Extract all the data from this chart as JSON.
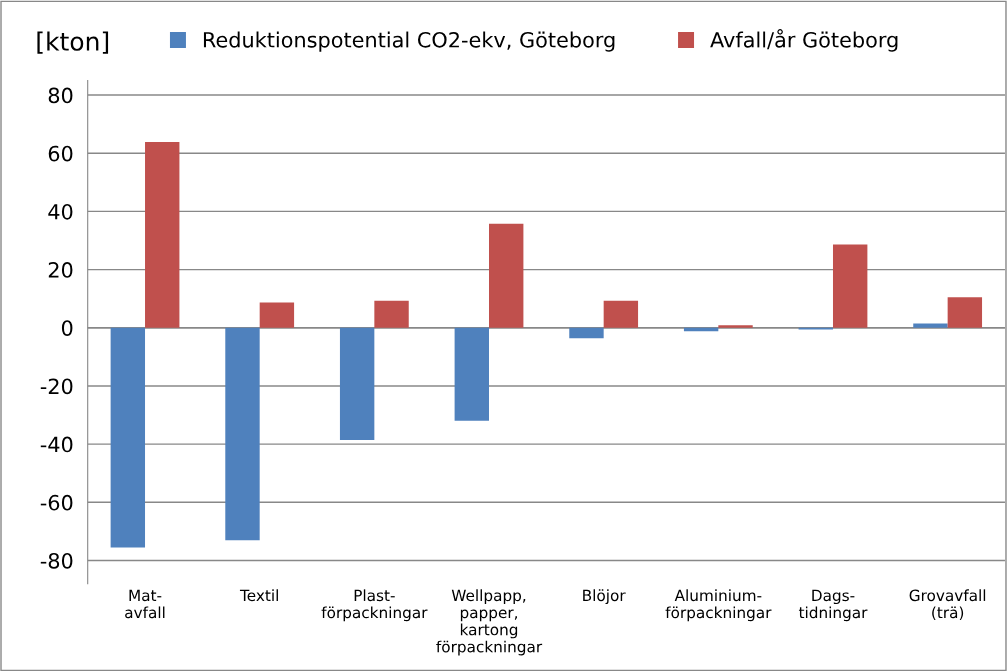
{
  "chart_data": {
    "type": "bar",
    "ylabel": "[kton]",
    "categories": [
      "Mat-\navfall",
      "Textil",
      "Plast-\nförpackningar",
      "Wellpapp,\npapper,\nkartong\nförpackningar",
      "Blöjor",
      "Aluminium-\nförpackningar",
      "Dags-\ntidningar",
      "Grovavfall\n(trä)"
    ],
    "series": [
      {
        "name": "Reduktionspotential CO2-ekv, Göteborg",
        "color": "#4f81bd",
        "values": [
          -75.5,
          -73,
          -38.6,
          -32,
          -3.6,
          -1.2,
          -0.6,
          1.5
        ]
      },
      {
        "name": "Avfall/år Göteborg",
        "color": "#c0504d",
        "values": [
          63.9,
          8.7,
          9.3,
          35.8,
          9.3,
          0.9,
          28.6,
          10.5
        ]
      }
    ],
    "ylim": [
      -88,
      85
    ],
    "yticks": [
      -80,
      -60,
      -40,
      -20,
      0,
      20,
      40,
      60,
      80
    ],
    "grid": "y",
    "legend": "top"
  }
}
